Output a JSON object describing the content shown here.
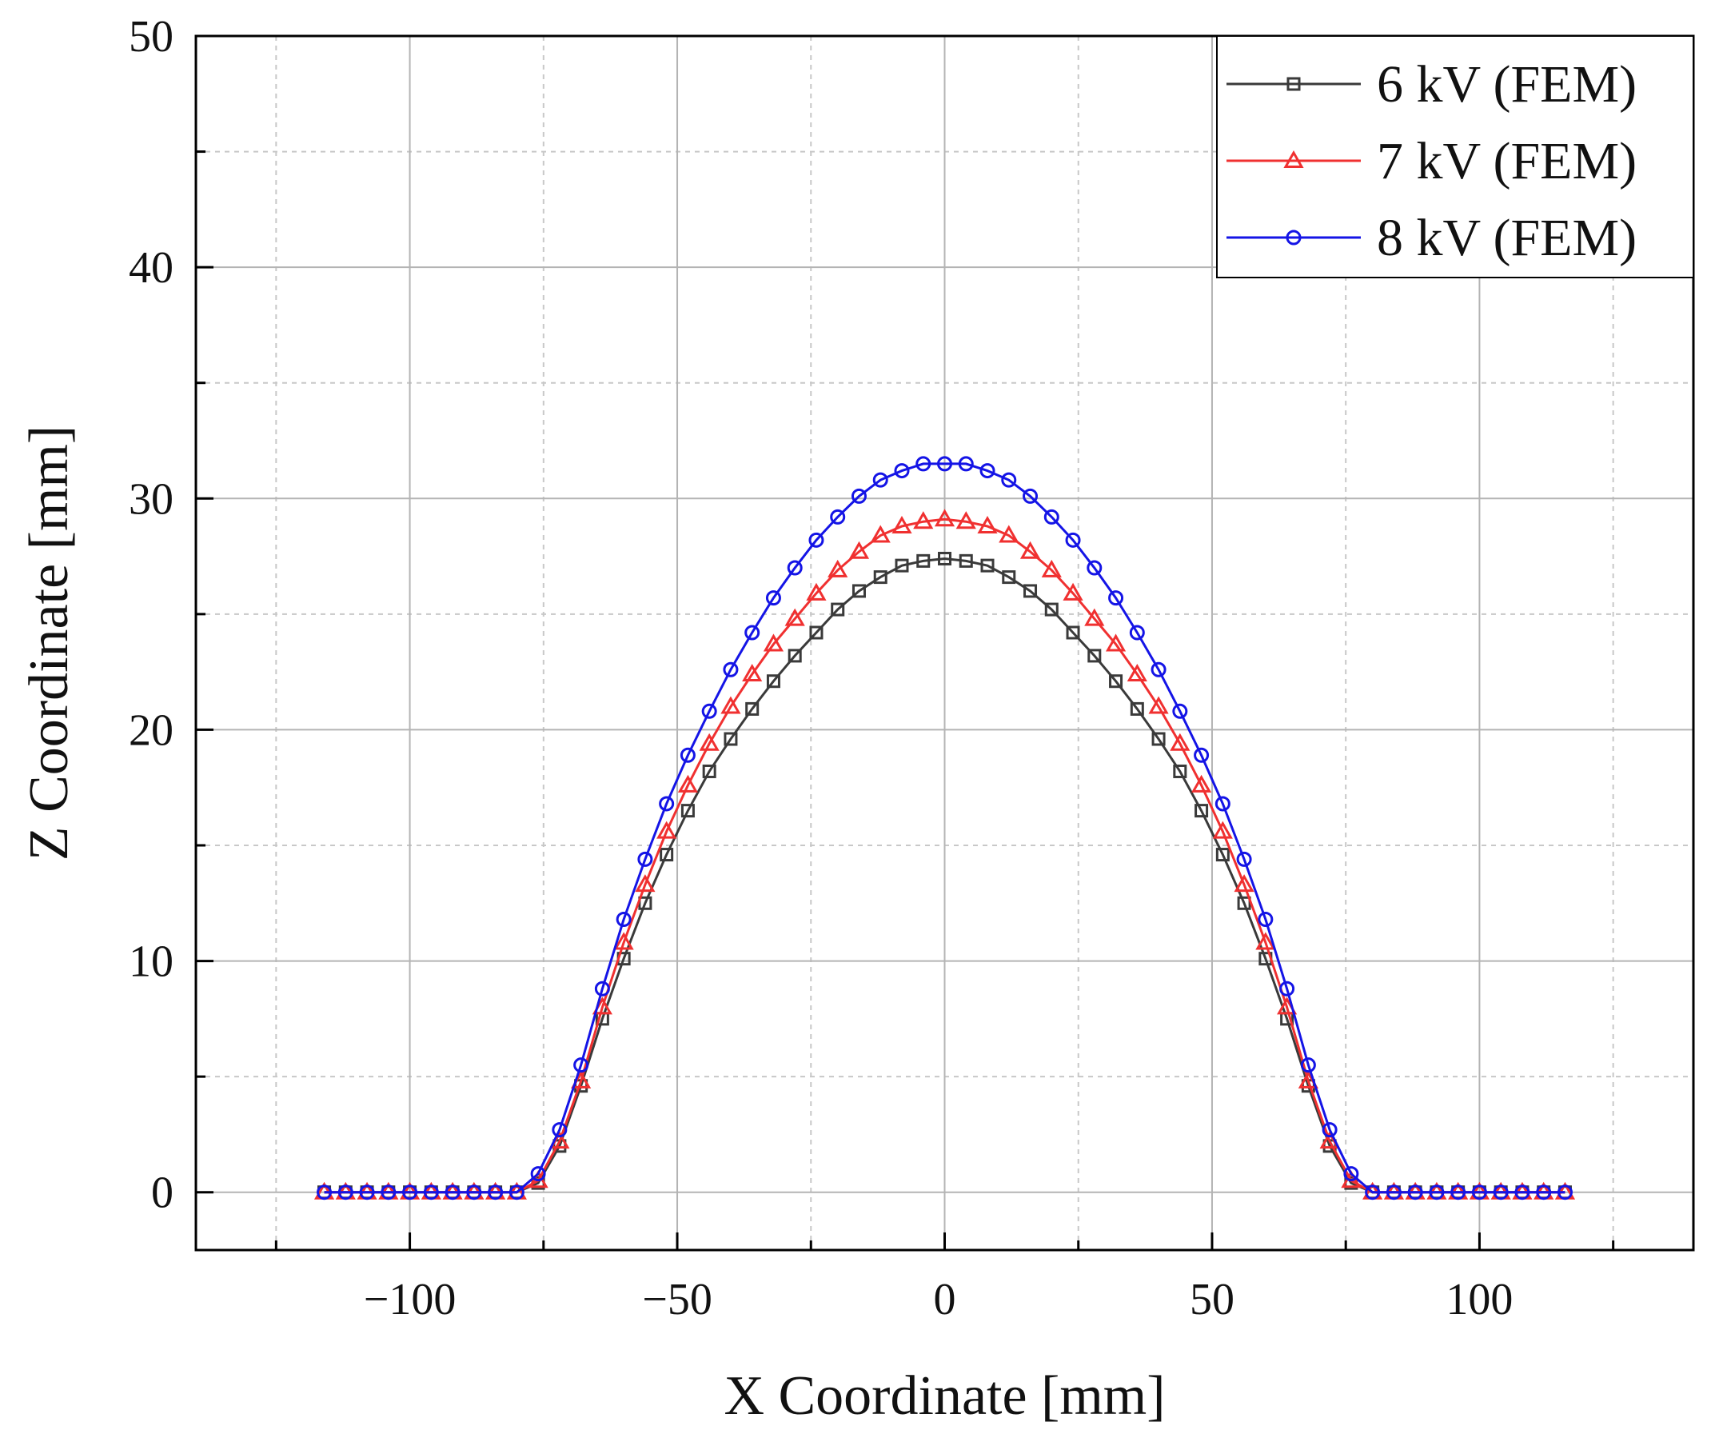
{
  "chart_data": {
    "type": "line",
    "title": "",
    "xlabel": "X Coordinate [mm]",
    "ylabel": "Z Coordinate [mm]",
    "xlim": [
      -140,
      140
    ],
    "ylim": [
      -2.5,
      50
    ],
    "xticks": [
      -100,
      -50,
      0,
      50,
      100
    ],
    "xtick_labels": [
      "−100",
      "−50",
      "0",
      "50",
      "100"
    ],
    "xminor": [
      -125,
      -75,
      -25,
      25,
      75,
      125
    ],
    "yticks": [
      0,
      10,
      20,
      30,
      40,
      50
    ],
    "ytick_labels": [
      "0",
      "10",
      "20",
      "30",
      "40",
      "50"
    ],
    "yminor": [
      5,
      15,
      25,
      35,
      45
    ],
    "grid": true,
    "legend_position": "top-right",
    "x": [
      -116,
      -112,
      -108,
      -104,
      -100,
      -96,
      -92,
      -88,
      -84,
      -80,
      -76,
      -72,
      -68,
      -64,
      -60,
      -56,
      -52,
      -48,
      -44,
      -40,
      -36,
      -32,
      -28,
      -24,
      -20,
      -16,
      -12,
      -8,
      -4,
      0,
      4,
      8,
      12,
      16,
      20,
      24,
      28,
      32,
      36,
      40,
      44,
      48,
      52,
      56,
      60,
      64,
      68,
      72,
      76,
      80,
      84,
      88,
      92,
      96,
      100,
      104,
      108,
      112,
      116
    ],
    "series": [
      {
        "name": "6 kV (FEM)",
        "color": "#3a3a3a",
        "marker": "square",
        "values": [
          0,
          0,
          0,
          0,
          0,
          0,
          0,
          0,
          0,
          0,
          0.4,
          2.0,
          4.6,
          7.5,
          10.1,
          12.5,
          14.6,
          16.5,
          18.2,
          19.6,
          20.9,
          22.1,
          23.2,
          24.2,
          25.2,
          26.0,
          26.6,
          27.1,
          27.3,
          27.4,
          27.3,
          27.1,
          26.6,
          26.0,
          25.2,
          24.2,
          23.2,
          22.1,
          20.9,
          19.6,
          18.2,
          16.5,
          14.6,
          12.5,
          10.1,
          7.5,
          4.6,
          2.0,
          0.4,
          0,
          0,
          0,
          0,
          0,
          0,
          0,
          0,
          0,
          0
        ]
      },
      {
        "name": "7 kV (FEM)",
        "color": "#f03030",
        "marker": "triangle",
        "values": [
          0,
          0,
          0,
          0,
          0,
          0,
          0,
          0,
          0,
          0,
          0.5,
          2.2,
          4.8,
          8.0,
          10.8,
          13.3,
          15.6,
          17.6,
          19.4,
          21.0,
          22.4,
          23.7,
          24.8,
          25.9,
          26.9,
          27.7,
          28.4,
          28.8,
          29.0,
          29.1,
          29.0,
          28.8,
          28.4,
          27.7,
          26.9,
          25.9,
          24.8,
          23.7,
          22.4,
          21.0,
          19.4,
          17.6,
          15.6,
          13.3,
          10.8,
          8.0,
          4.8,
          2.2,
          0.5,
          0,
          0,
          0,
          0,
          0,
          0,
          0,
          0,
          0,
          0
        ]
      },
      {
        "name": "8 kV (FEM)",
        "color": "#1414e6",
        "marker": "circle",
        "values": [
          0,
          0,
          0,
          0,
          0,
          0,
          0,
          0,
          0,
          0,
          0.8,
          2.7,
          5.5,
          8.8,
          11.8,
          14.4,
          16.8,
          18.9,
          20.8,
          22.6,
          24.2,
          25.7,
          27.0,
          28.2,
          29.2,
          30.1,
          30.8,
          31.2,
          31.5,
          31.5,
          31.5,
          31.2,
          30.8,
          30.1,
          29.2,
          28.2,
          27.0,
          25.7,
          24.2,
          22.6,
          20.8,
          18.9,
          16.8,
          14.4,
          11.8,
          8.8,
          5.5,
          2.7,
          0.8,
          0,
          0,
          0,
          0,
          0,
          0,
          0,
          0,
          0,
          0
        ]
      }
    ]
  }
}
